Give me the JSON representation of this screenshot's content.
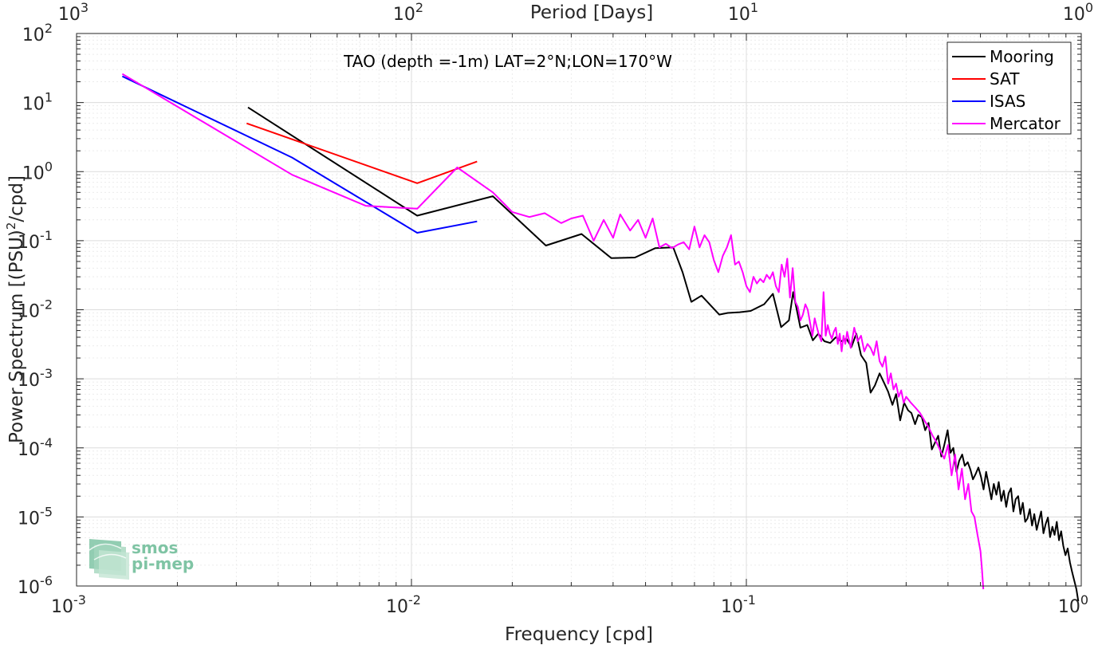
{
  "chart_data": {
    "type": "line",
    "title": "TAO (depth =-1m) LAT=2°N;LON=170°W",
    "xlabel": "Frequency [cpd]",
    "ylabel": "Power Spectrum [(PSU)",
    "ylabel_sup": "2",
    "ylabel_suffix": "/cpd]",
    "x2label": "Period [Days]",
    "xscale": "log",
    "yscale": "log",
    "xlim": [
      0.001,
      1
    ],
    "ylim": [
      1e-06,
      100
    ],
    "grid": true,
    "legend_position": "top-right",
    "x_ticks": [
      {
        "value": 0.001,
        "base": "10",
        "exp": "-3"
      },
      {
        "value": 0.01,
        "base": "10",
        "exp": "-2"
      },
      {
        "value": 0.1,
        "base": "10",
        "exp": "-1"
      },
      {
        "value": 1,
        "base": "10",
        "exp": "0"
      }
    ],
    "x2_ticks": [
      {
        "value": 0.001,
        "base": "10",
        "exp": "3"
      },
      {
        "value": 0.01,
        "base": "10",
        "exp": "2"
      },
      {
        "value": 0.1,
        "base": "10",
        "exp": "1"
      },
      {
        "value": 1,
        "base": "10",
        "exp": "0"
      }
    ],
    "y_ticks": [
      {
        "value": 100,
        "base": "10",
        "exp": "2"
      },
      {
        "value": 10,
        "base": "10",
        "exp": "1"
      },
      {
        "value": 1,
        "base": "10",
        "exp": "0"
      },
      {
        "value": 0.1,
        "base": "10",
        "exp": "-1"
      },
      {
        "value": 0.01,
        "base": "10",
        "exp": "-2"
      },
      {
        "value": 0.001,
        "base": "10",
        "exp": "-3"
      },
      {
        "value": 0.0001,
        "base": "10",
        "exp": "-4"
      },
      {
        "value": 1e-05,
        "base": "10",
        "exp": "-5"
      },
      {
        "value": 1e-06,
        "base": "10",
        "exp": "-6"
      }
    ],
    "series": [
      {
        "name": "Mooring",
        "color": "#000000",
        "x": [
          0.00325,
          0.0104,
          0.0175,
          0.0252,
          0.0322,
          0.0395,
          0.0465,
          0.0535,
          0.0605,
          0.0645,
          0.0685,
          0.0735,
          0.079,
          0.083,
          0.088,
          0.0955,
          0.103,
          0.113,
          0.12,
          0.127,
          0.134,
          0.138,
          0.145,
          0.152,
          0.158,
          0.164,
          0.171,
          0.178,
          0.185,
          0.192,
          0.199,
          0.206,
          0.213,
          0.22,
          0.228,
          0.235,
          0.242,
          0.25,
          0.257,
          0.265,
          0.273,
          0.28,
          0.288,
          0.296,
          0.304,
          0.311,
          0.319,
          0.326,
          0.334,
          0.342,
          0.35,
          0.358,
          0.366,
          0.374,
          0.382,
          0.39,
          0.399,
          0.407,
          0.415,
          0.424,
          0.432,
          0.441,
          0.449,
          0.458,
          0.467,
          0.475,
          0.484,
          0.493,
          0.502,
          0.511,
          0.52,
          0.53,
          0.539,
          0.548,
          0.558,
          0.567,
          0.577,
          0.587,
          0.597,
          0.607,
          0.617,
          0.627,
          0.637,
          0.648,
          0.658,
          0.669,
          0.68,
          0.691,
          0.702,
          0.713,
          0.724,
          0.736,
          0.747,
          0.759,
          0.771,
          0.783,
          0.795,
          0.807,
          0.82,
          0.832,
          0.845,
          0.858,
          0.871,
          0.884,
          0.897,
          0.911,
          0.925,
          0.939,
          0.953,
          0.967,
          0.98
        ],
        "y": [
          8.5,
          0.23,
          0.44,
          0.085,
          0.125,
          0.056,
          0.057,
          0.078,
          0.08,
          0.035,
          0.013,
          0.016,
          0.011,
          0.0085,
          0.009,
          0.0092,
          0.0096,
          0.012,
          0.017,
          0.0056,
          0.007,
          0.018,
          0.0055,
          0.006,
          0.0036,
          0.0045,
          0.0035,
          0.0033,
          0.004,
          0.0035,
          0.0038,
          0.0029,
          0.0045,
          0.0022,
          0.0017,
          0.00063,
          0.0008,
          0.0012,
          0.0009,
          0.00065,
          0.00042,
          0.0006,
          0.00025,
          0.00045,
          0.00035,
          0.00032,
          0.00022,
          0.0003,
          0.00028,
          0.00018,
          0.00023,
          9.5e-05,
          0.00012,
          0.00015,
          7.5e-05,
          0.00011,
          0.00018,
          8.5e-05,
          0.0001,
          4.5e-05,
          6.5e-05,
          8e-05,
          5.5e-05,
          6.2e-05,
          4.8e-05,
          3.5e-05,
          4.2e-05,
          5.2e-05,
          3.8e-05,
          2.5e-05,
          4.5e-05,
          2.8e-05,
          1.8e-05,
          3e-05,
          2.1e-05,
          3.2e-05,
          1.7e-05,
          2.4e-05,
          1.4e-05,
          2.2e-05,
          2.6e-05,
          1.2e-05,
          1.8e-05,
          2e-05,
          1.1e-05,
          1.6e-05,
          8.5e-06,
          9.5e-06,
          1.3e-05,
          7.5e-06,
          1.1e-05,
          6.5e-06,
          8.8e-06,
          1.2e-05,
          5.8e-06,
          7.9e-06,
          9.8e-06,
          5.1e-06,
          7.2e-06,
          5.5e-06,
          8.5e-06,
          4.6e-06,
          6.2e-06,
          3.8e-06,
          2.8e-06,
          3.5e-06,
          2.2e-06,
          1.6e-06,
          1.2e-06,
          9e-07,
          6e-07
        ]
      },
      {
        "name": "SAT",
        "color": "#ff0000",
        "x": [
          0.00322,
          0.0104,
          0.0157
        ],
        "y": [
          5.0,
          0.68,
          1.4
        ]
      },
      {
        "name": "ISAS",
        "color": "#0000ff",
        "x": [
          0.00137,
          0.0044,
          0.0104,
          0.0157
        ],
        "y": [
          24.0,
          1.6,
          0.13,
          0.19
        ]
      },
      {
        "name": "Mercator",
        "color": "#ff00ff",
        "x": [
          0.00137,
          0.0044,
          0.0073,
          0.0104,
          0.0137,
          0.0175,
          0.02,
          0.0225,
          0.025,
          0.028,
          0.03,
          0.0325,
          0.035,
          0.0375,
          0.04,
          0.042,
          0.045,
          0.0475,
          0.05,
          0.0525,
          0.055,
          0.0575,
          0.06,
          0.0625,
          0.065,
          0.0675,
          0.07,
          0.0725,
          0.075,
          0.0775,
          0.08,
          0.0825,
          0.085,
          0.0875,
          0.09,
          0.0925,
          0.095,
          0.0975,
          0.1,
          0.1025,
          0.105,
          0.1075,
          0.11,
          0.1125,
          0.115,
          0.1175,
          0.12,
          0.1225,
          0.125,
          0.1275,
          0.13,
          0.1325,
          0.135,
          0.1375,
          0.14,
          0.1425,
          0.145,
          0.1475,
          0.15,
          0.1525,
          0.155,
          0.1575,
          0.16,
          0.1625,
          0.165,
          0.1675,
          0.17,
          0.1725,
          0.175,
          0.1775,
          0.18,
          0.1825,
          0.185,
          0.1875,
          0.19,
          0.1925,
          0.195,
          0.1975,
          0.2,
          0.205,
          0.21,
          0.215,
          0.22,
          0.225,
          0.23,
          0.235,
          0.24,
          0.245,
          0.25,
          0.255,
          0.26,
          0.265,
          0.27,
          0.275,
          0.28,
          0.285,
          0.29,
          0.295,
          0.3,
          0.31,
          0.32,
          0.33,
          0.34,
          0.35,
          0.36,
          0.37,
          0.38,
          0.39,
          0.4,
          0.41,
          0.42,
          0.43,
          0.44,
          0.45,
          0.46,
          0.47,
          0.48,
          0.49,
          0.5,
          0.505,
          0.51
        ],
        "y": [
          26.0,
          0.9,
          0.32,
          0.29,
          1.15,
          0.5,
          0.26,
          0.22,
          0.25,
          0.18,
          0.21,
          0.23,
          0.1,
          0.2,
          0.11,
          0.24,
          0.14,
          0.2,
          0.11,
          0.21,
          0.08,
          0.09,
          0.078,
          0.088,
          0.095,
          0.075,
          0.16,
          0.08,
          0.12,
          0.095,
          0.052,
          0.035,
          0.06,
          0.08,
          0.12,
          0.045,
          0.05,
          0.035,
          0.022,
          0.018,
          0.03,
          0.024,
          0.028,
          0.025,
          0.032,
          0.028,
          0.035,
          0.022,
          0.018,
          0.045,
          0.03,
          0.055,
          0.015,
          0.04,
          0.013,
          0.011,
          0.007,
          0.0085,
          0.012,
          0.01,
          0.0065,
          0.0042,
          0.0075,
          0.0055,
          0.0042,
          0.0035,
          0.018,
          0.0042,
          0.006,
          0.0045,
          0.0038,
          0.0048,
          0.0055,
          0.0032,
          0.0045,
          0.0025,
          0.0042,
          0.0032,
          0.0048,
          0.0028,
          0.0055,
          0.0035,
          0.0042,
          0.0025,
          0.0032,
          0.0028,
          0.0022,
          0.0035,
          0.0018,
          0.0015,
          0.0021,
          0.00085,
          0.0012,
          0.0007,
          0.00085,
          0.00055,
          0.00068,
          0.00045,
          0.00055,
          0.00045,
          0.00038,
          0.00032,
          0.00025,
          0.0002,
          0.00015,
          0.00012,
          9e-05,
          7e-05,
          0.00011,
          4e-05,
          8e-05,
          2.5e-05,
          5e-05,
          1.8e-05,
          3e-05,
          1.2e-05,
          1e-05,
          5.5e-06,
          3.2e-06,
          1.8e-06,
          9e-07
        ]
      }
    ]
  },
  "logo": {
    "line1": "smos",
    "line2": "pi-mep",
    "color": "#7fc4a4"
  },
  "colors": {
    "grid_major": "#dcdcdc",
    "grid_minor": "#ececec",
    "axis": "#262626"
  }
}
